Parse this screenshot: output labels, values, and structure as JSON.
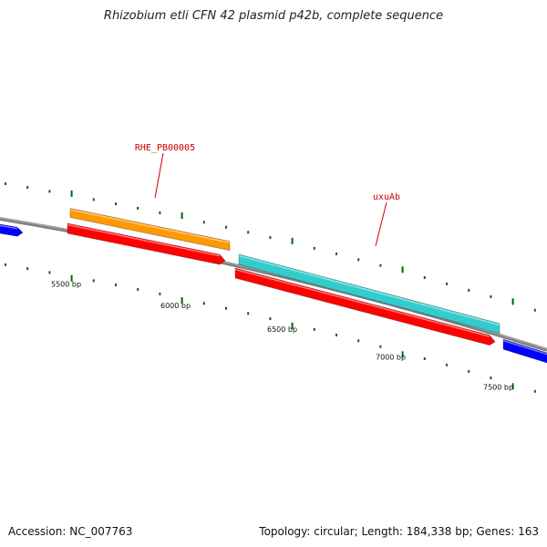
{
  "title": "Rhizobium etli CFN 42 plasmid p42b, complete sequence",
  "footer": {
    "accession": "Accession: NC_007763",
    "summary": "Topology: circular; Length: 184,338 bp; Genes: 163"
  },
  "scale": {
    "labels": [
      "5500 bp",
      "6000 bp",
      "6500 bp",
      "7000 bp",
      "7500 bp"
    ]
  },
  "genes": [
    {
      "name": "RHE_PB00005",
      "color": "#ff9900",
      "track": "outer"
    },
    {
      "name": "uxuAb",
      "color": "#33cccc",
      "track": "outer"
    },
    {
      "color": "#ff0000",
      "track": "inner"
    },
    {
      "color": "#ff0000",
      "track": "inner"
    },
    {
      "color": "#0000ff",
      "track": "edge"
    },
    {
      "color": "#0000ff",
      "track": "edge"
    }
  ],
  "colors": {
    "backbone": "#808080",
    "ticks": "#006600"
  }
}
